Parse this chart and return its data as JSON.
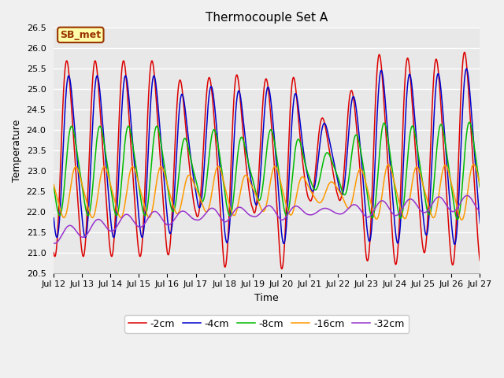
{
  "title": "Thermocouple Set A",
  "xlabel": "Time",
  "ylabel": "Temperature",
  "ylim": [
    20.5,
    26.5
  ],
  "tick_labels": [
    "Jul 12",
    "Jul 13",
    "Jul 14",
    "Jul 15",
    "Jul 16",
    "Jul 17",
    "Jul 18",
    "Jul 19",
    "Jul 20",
    "Jul 21",
    "Jul 22",
    "Jul 23",
    "Jul 24",
    "Jul 25",
    "Jul 26",
    "Jul 27"
  ],
  "series": [
    {
      "label": "-2cm",
      "color": "#dd0000",
      "base_amp": 2.3,
      "mean": 23.3,
      "phase_lag": 0.0,
      "period": 1.0
    },
    {
      "label": "-4cm",
      "color": "#0000cc",
      "base_amp": 1.9,
      "mean": 23.35,
      "phase_lag": 0.07,
      "period": 1.0
    },
    {
      "label": "-8cm",
      "color": "#00bb00",
      "base_amp": 1.05,
      "mean": 23.0,
      "phase_lag": 0.17,
      "period": 1.0
    },
    {
      "label": "-16cm",
      "color": "#ff9900",
      "base_amp": 0.6,
      "mean": 22.48,
      "phase_lag": 0.32,
      "period": 1.0
    },
    {
      "label": "-32cm",
      "color": "#9933cc",
      "base_amp": 0.18,
      "mean": 21.95,
      "phase_lag": 0.0,
      "period": 1.0
    }
  ],
  "daily_forcing": [
    2.3,
    2.3,
    2.3,
    2.3,
    2.3,
    1.3,
    2.6,
    1.2,
    2.65,
    1.0,
    0.9,
    2.4,
    2.5,
    2.2,
    2.5,
    2.5
  ],
  "purple_mean_trend": [
    21.4,
    21.55,
    21.7,
    21.8,
    21.85,
    21.9,
    21.95,
    21.98,
    22.0,
    22.0,
    22.02,
    22.05,
    22.1,
    22.15,
    22.2,
    22.2
  ],
  "annotation_text": "SB_met",
  "annotation_bg": "#ffffaa",
  "annotation_border": "#993300",
  "annotation_text_color": "#993300",
  "plot_bg_color": "#e8e8e8",
  "grid_color": "#ffffff",
  "title_fontsize": 11,
  "axis_label_fontsize": 9,
  "tick_fontsize": 8,
  "legend_fontsize": 9
}
